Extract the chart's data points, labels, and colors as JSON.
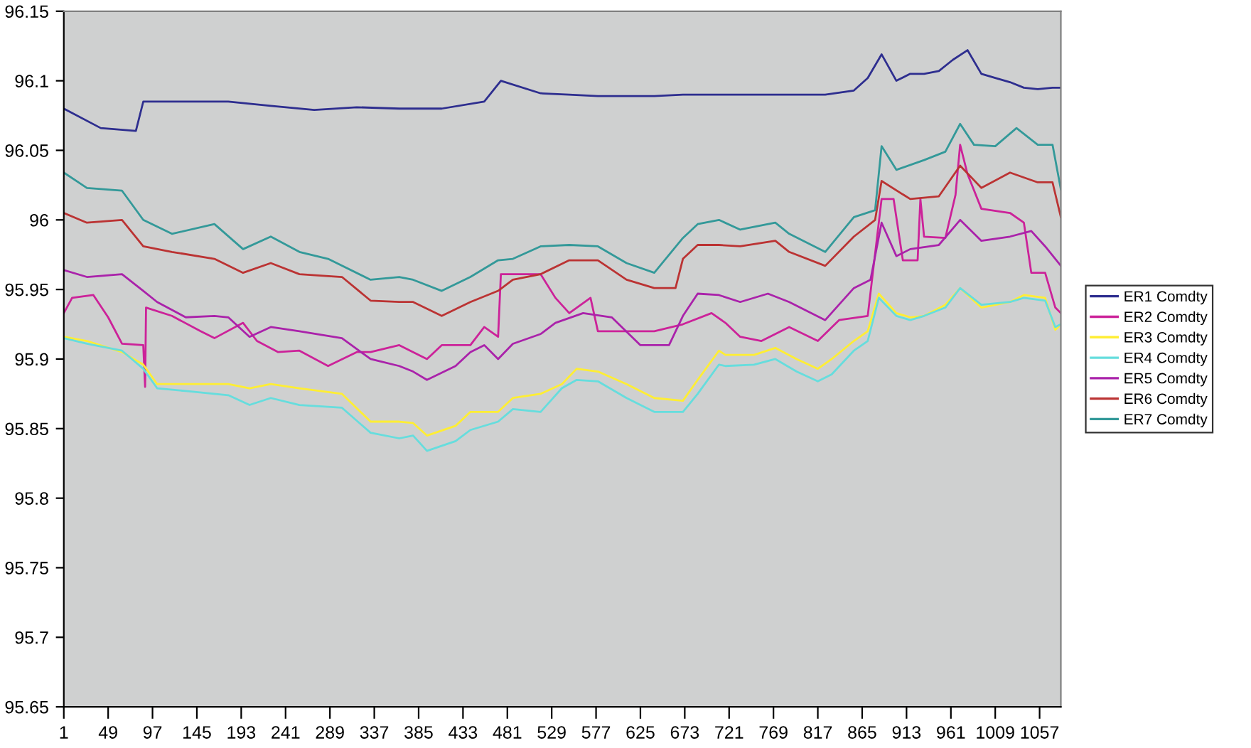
{
  "chart_data": {
    "type": "line",
    "xlim": [
      1,
      1080
    ],
    "xticks": [
      1,
      49,
      97,
      145,
      193,
      241,
      289,
      337,
      385,
      433,
      481,
      529,
      577,
      625,
      673,
      721,
      769,
      817,
      865,
      913,
      961,
      1009,
      1057
    ],
    "ylim": [
      95.65,
      96.15
    ],
    "yticks": [
      95.65,
      95.7,
      95.75,
      95.8,
      95.85,
      95.9,
      95.95,
      96,
      96.05,
      96.1,
      96.15
    ],
    "grid": false,
    "legend": "right",
    "marker": "none",
    "line_style": "solid",
    "series": [
      {
        "name": "ER1 Comdty",
        "color": "#2e2e8f",
        "x": [
          1,
          41,
          79,
          87,
          133,
          179,
          225,
          272,
          318,
          364,
          410,
          456,
          474,
          517,
          548,
          579,
          610,
          640,
          671,
          702,
          733,
          763,
          794,
          825,
          856,
          871,
          886,
          902,
          917,
          932,
          948,
          963,
          979,
          994,
          1009,
          1025,
          1040,
          1055,
          1071,
          1080
        ],
        "values": [
          96.08,
          96.066,
          96.064,
          96.085,
          96.085,
          96.085,
          96.082,
          96.079,
          96.081,
          96.08,
          96.08,
          96.085,
          96.1,
          96.091,
          96.09,
          96.089,
          96.089,
          96.089,
          96.09,
          96.09,
          96.09,
          96.09,
          96.09,
          96.09,
          96.093,
          96.102,
          96.119,
          96.1,
          96.105,
          96.105,
          96.107,
          96.115,
          96.122,
          96.105,
          96.102,
          96.099,
          96.095,
          96.094,
          96.095,
          96.095
        ]
      },
      {
        "name": "ER2 Comdty",
        "color": "#cc2299",
        "x": [
          1,
          10,
          33,
          49,
          64,
          87,
          89,
          90,
          118,
          149,
          164,
          195,
          210,
          233,
          256,
          287,
          318,
          333,
          364,
          379,
          394,
          410,
          441,
          456,
          471,
          474,
          487,
          517,
          533,
          548,
          571,
          579,
          610,
          640,
          671,
          702,
          717,
          733,
          756,
          786,
          817,
          840,
          871,
          886,
          899,
          909,
          925,
          928,
          932,
          955,
          966,
          971,
          979,
          994,
          1025,
          1040,
          1048,
          1063,
          1074,
          1080
        ],
        "values": [
          95.933,
          95.944,
          95.946,
          95.93,
          95.911,
          95.91,
          95.88,
          95.937,
          95.931,
          95.92,
          95.915,
          95.926,
          95.913,
          95.905,
          95.906,
          95.895,
          95.905,
          95.905,
          95.91,
          95.905,
          95.9,
          95.91,
          95.91,
          95.923,
          95.916,
          95.961,
          95.961,
          95.961,
          95.944,
          95.933,
          95.944,
          95.92,
          95.92,
          95.92,
          95.925,
          95.933,
          95.926,
          95.916,
          95.913,
          95.923,
          95.913,
          95.928,
          95.931,
          96.015,
          96.015,
          95.971,
          95.971,
          96.015,
          95.988,
          95.987,
          96.018,
          96.054,
          96.033,
          96.008,
          96.005,
          95.998,
          95.962,
          95.962,
          95.937,
          95.933
        ]
      },
      {
        "name": "ER3 Comdty",
        "color": "#ffee33",
        "x": [
          1,
          26,
          64,
          87,
          102,
          133,
          179,
          202,
          225,
          256,
          302,
          333,
          364,
          379,
          394,
          425,
          441,
          471,
          487,
          517,
          540,
          556,
          579,
          610,
          640,
          671,
          687,
          710,
          717,
          748,
          771,
          794,
          817,
          832,
          856,
          871,
          883,
          902,
          917,
          932,
          955,
          971,
          994,
          1025,
          1040,
          1063,
          1074,
          1080
        ],
        "values": [
          95.916,
          95.913,
          95.905,
          95.896,
          95.882,
          95.882,
          95.882,
          95.879,
          95.882,
          95.879,
          95.875,
          95.855,
          95.855,
          95.854,
          95.845,
          95.852,
          95.862,
          95.862,
          95.872,
          95.875,
          95.882,
          95.893,
          95.891,
          95.882,
          95.872,
          95.87,
          95.885,
          95.906,
          95.903,
          95.903,
          95.908,
          95.9,
          95.893,
          95.9,
          95.913,
          95.92,
          95.947,
          95.933,
          95.93,
          95.931,
          95.939,
          95.951,
          95.937,
          95.941,
          95.946,
          95.944,
          95.921,
          95.925
        ]
      },
      {
        "name": "ER4 Comdty",
        "color": "#66dddd",
        "x": [
          1,
          26,
          64,
          87,
          102,
          133,
          179,
          202,
          225,
          256,
          302,
          333,
          364,
          379,
          394,
          425,
          441,
          471,
          487,
          517,
          540,
          556,
          579,
          610,
          640,
          671,
          687,
          710,
          717,
          748,
          771,
          794,
          817,
          832,
          856,
          871,
          883,
          902,
          917,
          932,
          955,
          971,
          994,
          1025,
          1040,
          1063,
          1074,
          1080
        ],
        "values": [
          95.915,
          95.911,
          95.906,
          95.893,
          95.879,
          95.877,
          95.874,
          95.867,
          95.872,
          95.867,
          95.865,
          95.847,
          95.843,
          95.845,
          95.834,
          95.841,
          95.849,
          95.855,
          95.864,
          95.862,
          95.879,
          95.885,
          95.884,
          95.872,
          95.862,
          95.862,
          95.875,
          95.896,
          95.895,
          95.896,
          95.9,
          95.891,
          95.884,
          95.889,
          95.906,
          95.913,
          95.944,
          95.931,
          95.928,
          95.931,
          95.937,
          95.951,
          95.939,
          95.941,
          95.944,
          95.942,
          95.923,
          95.925
        ]
      },
      {
        "name": "ER5 Comdty",
        "color": "#aa22aa",
        "x": [
          1,
          26,
          64,
          87,
          102,
          133,
          164,
          179,
          202,
          225,
          256,
          302,
          333,
          364,
          379,
          394,
          425,
          441,
          456,
          471,
          487,
          517,
          533,
          563,
          594,
          625,
          656,
          671,
          687,
          710,
          733,
          763,
          786,
          825,
          856,
          874,
          886,
          902,
          917,
          948,
          971,
          994,
          1025,
          1048,
          1063,
          1080
        ],
        "values": [
          95.964,
          95.959,
          95.961,
          95.949,
          95.941,
          95.93,
          95.931,
          95.93,
          95.916,
          95.923,
          95.92,
          95.915,
          95.9,
          95.895,
          95.891,
          95.885,
          95.895,
          95.905,
          95.91,
          95.9,
          95.911,
          95.918,
          95.926,
          95.933,
          95.93,
          95.91,
          95.91,
          95.931,
          95.947,
          95.946,
          95.941,
          95.947,
          95.941,
          95.928,
          95.951,
          95.957,
          95.998,
          95.974,
          95.979,
          95.982,
          96.0,
          95.985,
          95.988,
          95.992,
          95.981,
          95.967
        ]
      },
      {
        "name": "ER6 Comdty",
        "color": "#bb3333",
        "x": [
          1,
          26,
          64,
          87,
          118,
          164,
          195,
          225,
          256,
          302,
          333,
          364,
          379,
          410,
          441,
          471,
          487,
          517,
          548,
          579,
          610,
          640,
          663,
          671,
          687,
          710,
          733,
          771,
          786,
          825,
          856,
          879,
          886,
          917,
          948,
          971,
          994,
          1025,
          1055,
          1071,
          1080
        ],
        "values": [
          96.005,
          95.998,
          96.0,
          95.981,
          95.977,
          95.972,
          95.962,
          95.969,
          95.961,
          95.959,
          95.942,
          95.941,
          95.941,
          95.931,
          95.941,
          95.949,
          95.957,
          95.961,
          95.971,
          95.971,
          95.957,
          95.951,
          95.951,
          95.972,
          95.982,
          95.982,
          95.981,
          95.985,
          95.977,
          95.967,
          95.988,
          96.0,
          96.028,
          96.015,
          96.017,
          96.039,
          96.023,
          96.034,
          96.027,
          96.027,
          96.002
        ]
      },
      {
        "name": "ER7 Comdty",
        "color": "#339999",
        "x": [
          1,
          26,
          64,
          87,
          118,
          164,
          195,
          225,
          256,
          287,
          333,
          364,
          379,
          410,
          441,
          471,
          487,
          517,
          548,
          579,
          610,
          640,
          671,
          687,
          710,
          733,
          771,
          786,
          825,
          856,
          879,
          886,
          902,
          932,
          955,
          971,
          986,
          1009,
          1032,
          1055,
          1071,
          1080
        ],
        "values": [
          96.034,
          96.023,
          96.021,
          96.0,
          95.99,
          95.997,
          95.979,
          95.988,
          95.977,
          95.972,
          95.957,
          95.959,
          95.957,
          95.949,
          95.959,
          95.971,
          95.972,
          95.981,
          95.982,
          95.981,
          95.969,
          95.962,
          95.987,
          95.997,
          96.0,
          95.993,
          95.998,
          95.99,
          95.977,
          96.002,
          96.007,
          96.053,
          96.036,
          96.043,
          96.049,
          96.069,
          96.054,
          96.053,
          96.066,
          96.054,
          96.054,
          96.022
        ]
      }
    ]
  }
}
